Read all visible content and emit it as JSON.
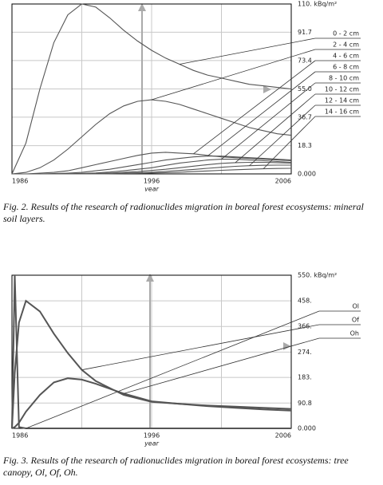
{
  "chart_data": [
    {
      "type": "line",
      "xlabel": "year",
      "caption": "Fig. 2. Results of the research of radionuclides migration in boreal forest ecosystems: mineral soil layers.",
      "x": [
        1986,
        1987,
        1988,
        1989,
        1990,
        1991,
        1992,
        1993,
        1994,
        1995,
        1996,
        1997,
        1998,
        1999,
        2000,
        2001,
        2002,
        2003,
        2004,
        2005,
        2006
      ],
      "xlim": [
        1986,
        2006
      ],
      "xticks": [
        1986,
        1996,
        2006
      ],
      "xgrid": [
        1986,
        1991,
        1996,
        2001,
        2006
      ],
      "ylim": [
        0,
        110
      ],
      "yticks": [
        {
          "value": 0,
          "label": "0.000"
        },
        18.3,
        36.7,
        {
          "value": 55,
          "label": "55.0"
        },
        73.4,
        91.7,
        {
          "value": 110,
          "label": "110. kBq/m²"
        }
      ],
      "grid": true,
      "series": [
        {
          "name": "0 - 2 cm",
          "color": "#555555",
          "values": [
            0,
            20,
            55,
            85,
            103,
            110,
            108,
            101,
            93,
            86,
            80,
            75,
            71,
            67,
            64,
            62,
            60,
            58,
            57,
            56,
            55
          ]
        },
        {
          "name": "2 - 4 cm",
          "color": "#555555",
          "values": [
            0,
            1,
            4,
            9,
            16,
            24,
            32,
            39,
            44,
            47,
            48,
            47,
            45,
            42,
            39,
            36,
            33,
            30,
            28,
            26,
            25
          ]
        },
        {
          "name": "4 - 6 cm",
          "color": "#555555",
          "values": [
            0,
            0,
            0.5,
            1,
            2,
            4,
            6,
            8,
            10,
            12,
            13.5,
            14,
            13.5,
            13,
            12,
            11,
            10.5,
            10,
            9.5,
            9,
            8.5
          ]
        },
        {
          "name": "6 - 8 cm",
          "color": "#555555",
          "values": [
            0,
            0,
            0,
            0.2,
            0.5,
            1,
            2,
            3,
            4.5,
            6,
            7.5,
            9,
            10,
            11,
            11.5,
            11.5,
            11,
            10.5,
            10,
            9.5,
            9
          ]
        },
        {
          "name": "8 - 10 cm",
          "color": "#555555",
          "values": [
            0,
            0,
            0,
            0,
            0.1,
            0.3,
            0.6,
            1.2,
            2,
            3,
            4,
            5.5,
            7,
            8,
            9,
            9.5,
            9.5,
            9,
            8.5,
            8,
            7.5
          ]
        },
        {
          "name": "10 - 12 cm",
          "color": "#555555",
          "values": [
            0,
            0,
            0,
            0,
            0,
            0.1,
            0.2,
            0.5,
            1,
            1.5,
            2.2,
            3,
            4,
            5,
            6,
            6.8,
            7.3,
            7.5,
            7.5,
            7.3,
            7
          ]
        },
        {
          "name": "12 - 14 cm",
          "color": "#555555",
          "values": [
            0,
            0,
            0,
            0,
            0,
            0,
            0.1,
            0.2,
            0.4,
            0.7,
            1.1,
            1.6,
            2.2,
            2.9,
            3.6,
            4.3,
            4.9,
            5.3,
            5.6,
            5.7,
            5.7
          ]
        },
        {
          "name": "14 - 16 cm",
          "color": "#555555",
          "values": [
            0,
            0,
            0,
            0,
            0,
            0,
            0,
            0.1,
            0.2,
            0.3,
            0.5,
            0.8,
            1.1,
            1.5,
            1.9,
            2.3,
            2.7,
            3,
            3.3,
            3.5,
            3.6
          ]
        }
      ]
    },
    {
      "type": "line",
      "xlabel": "year",
      "caption": "Fig. 3. Results of the research of radionuclides migration in boreal forest ecosystems: tree canopy, Ol, Of, Oh.",
      "x": [
        1986,
        1986.2,
        1986.5,
        1987,
        1988,
        1989,
        1990,
        1991,
        1992,
        1994,
        1996,
        1998,
        2000,
        2002,
        2004,
        2006
      ],
      "xlim": [
        1986,
        2006
      ],
      "xticks": [
        1986,
        1996,
        2006
      ],
      "xgrid": [
        1986,
        1991,
        1996,
        2001,
        2006
      ],
      "ylim": [
        0,
        550
      ],
      "yticks": [
        {
          "value": 0,
          "label": "0.000"
        },
        90.8,
        {
          "value": 183,
          "label": "183."
        },
        {
          "value": 274,
          "label": "274."
        },
        {
          "value": 366,
          "label": "366."
        },
        {
          "value": 458,
          "label": "458."
        },
        {
          "value": 550,
          "label": "550. kBq/m²"
        }
      ],
      "grid": true,
      "series": [
        {
          "name": "Ol",
          "color": "#555555",
          "values": [
            0,
            550,
            5,
            0,
            0,
            0,
            0,
            0,
            0,
            0,
            0,
            0,
            0,
            0,
            0,
            0
          ]
        },
        {
          "name": "Of",
          "color": "#555555",
          "values": [
            0,
            200,
            380,
            458,
            420,
            340,
            270,
            210,
            170,
            120,
            95,
            88,
            82,
            78,
            74,
            70
          ]
        },
        {
          "name": "Oh",
          "color": "#555555",
          "values": [
            0,
            5,
            20,
            60,
            120,
            165,
            180,
            175,
            160,
            125,
            97,
            88,
            80,
            74,
            68,
            64
          ]
        }
      ]
    }
  ]
}
